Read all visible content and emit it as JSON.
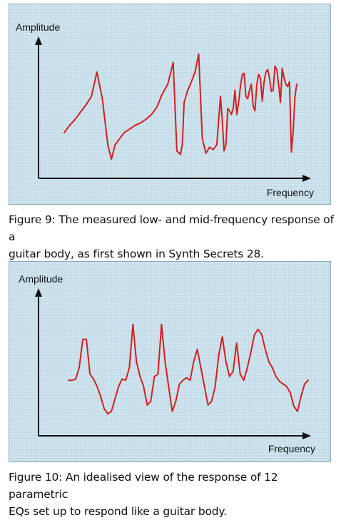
{
  "charts": [
    {
      "ylabel": "Amplitude",
      "xlabel": "Frequency",
      "caption_line1": "Figure 9: The measured low- and mid-frequency response of a",
      "caption_line2": "guitar body, as first shown in Synth Secrets 28."
    },
    {
      "ylabel": "Amplitude",
      "xlabel": "Frequency",
      "caption_line1": "Figure 10: An idealised view of the response of 12 parametric",
      "caption_line2": "EQs set up to respond like a guitar body."
    }
  ],
  "colors": {
    "panel_background": "#cfe4ee",
    "panel_grid": "#b3d0de",
    "curve": "#d41f1f",
    "axis": "#111111"
  },
  "chart_data": [
    {
      "type": "line",
      "xlabel": "Frequency",
      "ylabel": "Amplitude",
      "grid": true,
      "ylim": [
        0,
        100
      ],
      "x": [
        0,
        3,
        6,
        9,
        12,
        15,
        18,
        21,
        24,
        26,
        28,
        30,
        32,
        33,
        36,
        39,
        42,
        45,
        48,
        51,
        54,
        57,
        60,
        62,
        64,
        65,
        66,
        67,
        68,
        70,
        72,
        74,
        76,
        78,
        80,
        82,
        84,
        86,
        87,
        88,
        89,
        90,
        91,
        92,
        93,
        94,
        95,
        96,
        97,
        98,
        99,
        100,
        101,
        102,
        103,
        104,
        105,
        106,
        107,
        108,
        109,
        110,
        111,
        112,
        113,
        114,
        115,
        116,
        117,
        118,
        119,
        120,
        121,
        122,
        123,
        124,
        125,
        126,
        127,
        128
      ],
      "values": [
        30,
        36,
        41,
        47,
        53,
        60,
        80,
        58,
        20,
        8,
        20,
        24,
        28,
        30,
        33,
        36,
        38,
        41,
        45,
        51,
        62,
        70,
        88,
        15,
        12,
        20,
        55,
        60,
        65,
        72,
        80,
        95,
        25,
        13,
        18,
        16,
        20,
        60,
        40,
        15,
        20,
        50,
        48,
        45,
        50,
        65,
        45,
        55,
        68,
        78,
        79,
        60,
        58,
        65,
        70,
        52,
        48,
        70,
        78,
        75,
        56,
        72,
        80,
        82,
        75,
        64,
        65,
        85,
        82,
        70,
        55,
        83,
        75,
        70,
        68,
        72,
        14,
        30,
        60,
        70
      ]
    },
    {
      "type": "line",
      "xlabel": "Frequency",
      "ylabel": "Amplitude",
      "grid": true,
      "ylim": [
        0,
        100
      ],
      "x": [
        0,
        2,
        4,
        6,
        8,
        10,
        12,
        14,
        16,
        18,
        20,
        22,
        24,
        26,
        28,
        30,
        32,
        34,
        36,
        38,
        40,
        42,
        44,
        46,
        48,
        50,
        52,
        54,
        56,
        58,
        60,
        62,
        64,
        66,
        68,
        70,
        72,
        74,
        76,
        78,
        80,
        82,
        84,
        86,
        88,
        90,
        92,
        94,
        96,
        98,
        100,
        102,
        104,
        106,
        108,
        110,
        112,
        114,
        116,
        118,
        120,
        122,
        124,
        126,
        128,
        130,
        132,
        134
      ],
      "values": [
        35,
        35,
        36,
        45,
        68,
        68,
        40,
        36,
        30,
        22,
        12,
        8,
        10,
        20,
        30,
        36,
        35,
        45,
        80,
        50,
        38,
        30,
        15,
        18,
        38,
        40,
        80,
        50,
        30,
        10,
        18,
        32,
        35,
        37,
        35,
        50,
        60,
        45,
        30,
        15,
        18,
        30,
        55,
        70,
        50,
        38,
        42,
        65,
        40,
        35,
        45,
        58,
        72,
        76,
        72,
        60,
        50,
        45,
        38,
        34,
        32,
        30,
        25,
        14,
        10,
        22,
        32,
        35
      ]
    }
  ]
}
